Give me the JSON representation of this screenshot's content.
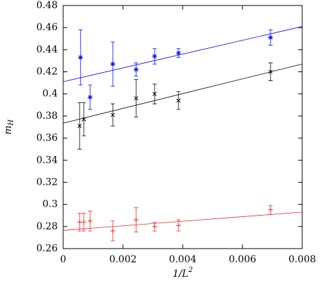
{
  "chart_data": {
    "type": "errorbar",
    "x_label": {
      "base": "1/L",
      "sup": "2"
    },
    "y_label": {
      "base": "m",
      "sub": "H"
    },
    "xlim": [
      0,
      0.008
    ],
    "xticks": [
      0,
      0.002,
      0.004,
      0.006,
      0.008
    ],
    "ylim": [
      0.26,
      0.48
    ],
    "yticks": [
      0.26,
      0.28,
      0.3,
      0.32,
      0.34,
      0.36,
      0.38,
      0.4,
      0.42,
      0.44,
      0.46,
      0.48
    ],
    "grid": false,
    "series": [
      {
        "color": "#0000ff",
        "marker": "asterisk",
        "x": [
          0.00058,
          0.0009,
          0.00166,
          0.00244,
          0.00306,
          0.00386,
          0.00694
        ],
        "values": [
          0.433,
          0.397,
          0.427,
          0.422,
          0.434,
          0.437,
          0.451
        ],
        "errors": [
          0.025,
          0.011,
          0.02,
          0.006,
          0.007,
          0.004,
          0.007
        ],
        "fit": {
          "x": [
            0,
            0.008
          ],
          "values": [
            0.411,
            0.461
          ]
        }
      },
      {
        "color": "#000000",
        "marker": "cross",
        "x": [
          0.00055,
          0.00069,
          0.00166,
          0.00244,
          0.00306,
          0.00386,
          0.00694
        ],
        "values": [
          0.371,
          0.377,
          0.381,
          0.396,
          0.4,
          0.394,
          0.42
        ],
        "errors": [
          0.021,
          0.015,
          0.01,
          0.017,
          0.009,
          0.008,
          0.008
        ],
        "fit": {
          "x": [
            0,
            0.008
          ],
          "values": [
            0.3735,
            0.427
          ]
        }
      },
      {
        "color": "#ee2222",
        "marker": "plus",
        "x": [
          0.00055,
          0.00069,
          0.0009,
          0.00166,
          0.00244,
          0.00306,
          0.00386,
          0.00694
        ],
        "values": [
          0.284,
          0.284,
          0.285,
          0.276,
          0.286,
          0.28,
          0.281,
          0.295
        ],
        "errors": [
          0.008,
          0.008,
          0.009,
          0.009,
          0.011,
          0.004,
          0.005,
          0.004
        ],
        "fit": {
          "x": [
            0,
            0.008
          ],
          "values": [
            0.2765,
            0.293
          ]
        }
      }
    ]
  }
}
